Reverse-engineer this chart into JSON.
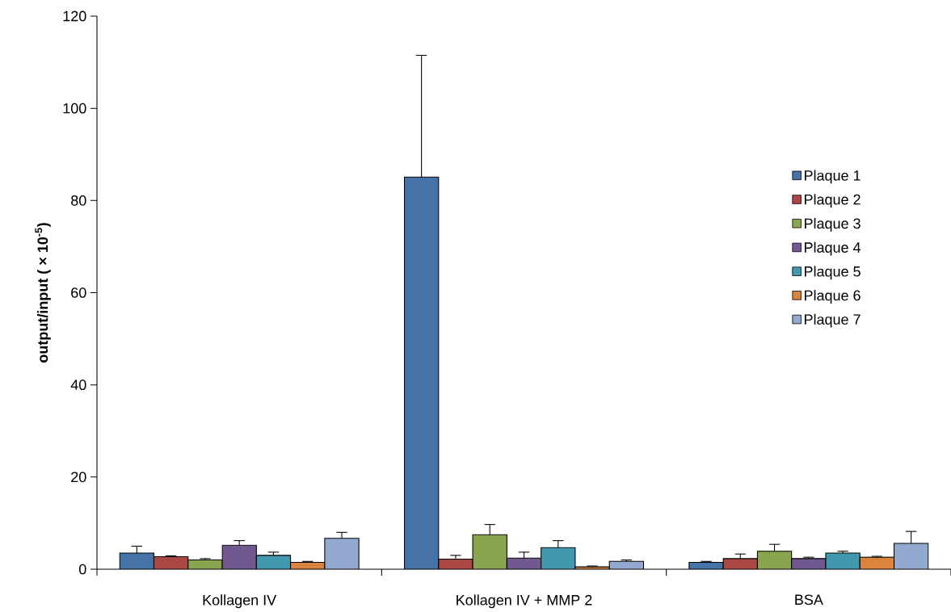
{
  "chart_data": {
    "type": "bar",
    "ylabel": "output/input ( × 10$^{-5}$)",
    "categories": [
      "Kollagen IV",
      "Kollagen IV + MMP 2",
      "BSA"
    ],
    "series": [
      {
        "name": "Plaque 1",
        "color": "#4572a7",
        "values": [
          3.5,
          85.1,
          1.5
        ],
        "errors": [
          [
            3.5,
            5.0
          ],
          [
            85.1,
            111.5
          ],
          [
            1.5,
            1.7
          ]
        ]
      },
      {
        "name": "Plaque 2",
        "color": "#aa4643",
        "values": [
          2.7,
          2.2,
          2.3
        ],
        "errors": [
          [
            2.7,
            2.9
          ],
          [
            2.2,
            3.0
          ],
          [
            2.3,
            3.3
          ]
        ]
      },
      {
        "name": "Plaque 3",
        "color": "#89a54e",
        "values": [
          2.0,
          7.5,
          3.9
        ],
        "errors": [
          [
            2.0,
            2.3
          ],
          [
            7.5,
            9.7
          ],
          [
            3.9,
            5.4
          ]
        ]
      },
      {
        "name": "Plaque 4",
        "color": "#71588f",
        "values": [
          5.2,
          2.4,
          2.3
        ],
        "errors": [
          [
            5.2,
            6.2
          ],
          [
            2.4,
            3.7
          ],
          [
            2.3,
            2.6
          ]
        ]
      },
      {
        "name": "Plaque 5",
        "color": "#4198af",
        "values": [
          3.0,
          4.7,
          3.5
        ],
        "errors": [
          [
            3.0,
            3.7
          ],
          [
            4.7,
            6.2
          ],
          [
            3.5,
            3.9
          ]
        ]
      },
      {
        "name": "Plaque 6",
        "color": "#db843d",
        "values": [
          1.5,
          0.5,
          2.6
        ],
        "errors": [
          [
            1.5,
            1.7
          ],
          [
            0.5,
            0.7
          ],
          [
            2.6,
            2.8
          ]
        ]
      },
      {
        "name": "Plaque 7",
        "color": "#93a9cf",
        "values": [
          6.7,
          1.7,
          5.6
        ],
        "errors": [
          [
            6.7,
            8.0
          ],
          [
            1.7,
            2.0
          ],
          [
            5.6,
            8.2
          ]
        ]
      }
    ],
    "ylim": [
      0,
      120
    ],
    "yticks": [
      0,
      20,
      40,
      60,
      80,
      100,
      120
    ],
    "legend": "right"
  }
}
